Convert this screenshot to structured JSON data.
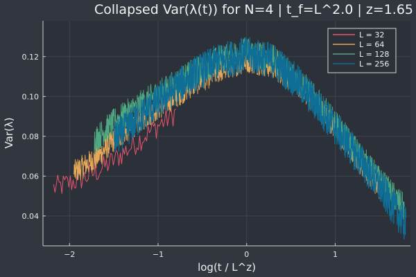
{
  "chart_data": {
    "type": "line",
    "title": "Collapsed Var(λ(t)) for N=4 | t_f=L^2.0 | z=1.65",
    "xlabel": "log(t / L^z)",
    "ylabel": "Var(λ)",
    "xlim": [
      -2.3,
      1.85
    ],
    "ylim": [
      0.025,
      0.138
    ],
    "x_ticks": [
      -2,
      -1,
      0,
      1
    ],
    "x_tick_labels": [
      "−2",
      "−1",
      "0",
      "1"
    ],
    "y_ticks": [
      0.04,
      0.06,
      0.08,
      0.1,
      0.12
    ],
    "y_tick_labels": [
      "0.04",
      "0.06",
      "0.08",
      "0.10",
      "0.12"
    ],
    "grid": true,
    "legend_position": "top-right",
    "series": [
      {
        "name": "L = 32",
        "color": "#e8566f",
        "x_range": [
          -2.18,
          -0.8
        ],
        "noise": 0.006,
        "points": [
          [
            -2.18,
            0.054
          ],
          [
            -2.1,
            0.055
          ],
          [
            -1.9,
            0.058
          ],
          [
            -1.7,
            0.062
          ],
          [
            -1.5,
            0.068
          ],
          [
            -1.3,
            0.075
          ],
          [
            -1.1,
            0.082
          ],
          [
            -0.8,
            0.092
          ]
        ]
      },
      {
        "name": "L = 64",
        "color": "#e6a85a",
        "x_range": [
          -1.95,
          1.5
        ],
        "noise": 0.006,
        "points": [
          [
            -1.95,
            0.062
          ],
          [
            -1.7,
            0.069
          ],
          [
            -1.5,
            0.078
          ],
          [
            -1.2,
            0.088
          ],
          [
            -0.9,
            0.097
          ],
          [
            -0.6,
            0.106
          ],
          [
            -0.3,
            0.113
          ],
          [
            0.0,
            0.118
          ],
          [
            0.3,
            0.115
          ],
          [
            0.6,
            0.105
          ],
          [
            0.9,
            0.09
          ],
          [
            1.2,
            0.072
          ],
          [
            1.5,
            0.054
          ]
        ]
      },
      {
        "name": "L = 128",
        "color": "#4ea882",
        "x_range": [
          -1.72,
          1.78
        ],
        "noise": 0.007,
        "points": [
          [
            -1.72,
            0.078
          ],
          [
            -1.5,
            0.087
          ],
          [
            -1.2,
            0.096
          ],
          [
            -0.9,
            0.104
          ],
          [
            -0.6,
            0.112
          ],
          [
            -0.3,
            0.119
          ],
          [
            0.0,
            0.123
          ],
          [
            0.3,
            0.119
          ],
          [
            0.6,
            0.108
          ],
          [
            0.9,
            0.092
          ],
          [
            1.2,
            0.075
          ],
          [
            1.5,
            0.058
          ],
          [
            1.78,
            0.044
          ]
        ]
      },
      {
        "name": "L = 256",
        "color": "#0f6e96",
        "x_range": [
          -1.5,
          1.8
        ],
        "noise": 0.009,
        "points": [
          [
            -1.5,
            0.078
          ],
          [
            -1.2,
            0.09
          ],
          [
            -0.9,
            0.101
          ],
          [
            -0.6,
            0.111
          ],
          [
            -0.3,
            0.118
          ],
          [
            0.0,
            0.121
          ],
          [
            0.3,
            0.118
          ],
          [
            0.6,
            0.106
          ],
          [
            0.9,
            0.09
          ],
          [
            1.2,
            0.073
          ],
          [
            1.5,
            0.055
          ],
          [
            1.8,
            0.035
          ]
        ]
      }
    ]
  }
}
